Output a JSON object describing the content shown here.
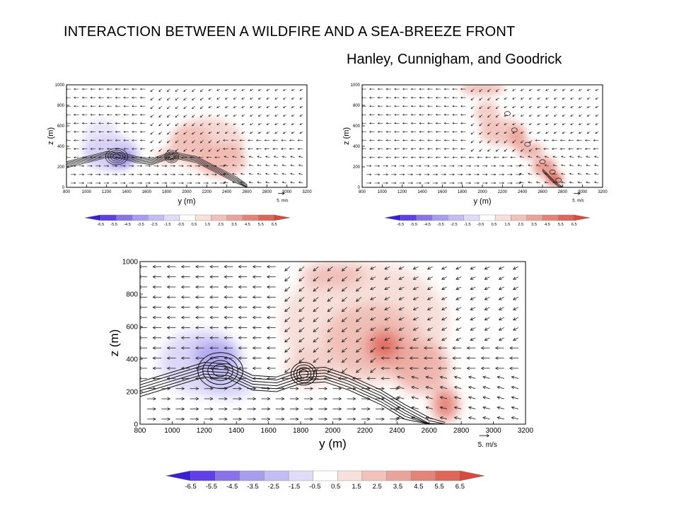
{
  "header": {
    "title": "INTERACTION BETWEEN A WILDFIRE AND A SEA-BREEZE FRONT",
    "authors": "Hanley, Cunnigham, and Goodrick"
  },
  "figure_common": {
    "xlabel": "y (m)",
    "ylabel": "z (m)",
    "x_ticks": [
      "800",
      "1000",
      "1200",
      "1400",
      "1600",
      "1800",
      "2000",
      "2200",
      "2400",
      "2600",
      "2800",
      "3000",
      "3200"
    ],
    "y_ticks": [
      "0",
      "200",
      "400",
      "600",
      "800",
      "1000"
    ],
    "xlim": [
      800,
      3200
    ],
    "ylim": [
      0,
      1000
    ],
    "vector_key": "5. m/s",
    "colorbar_labels": [
      "-6.5",
      "-5.5",
      "-4.5",
      "-3.5",
      "-2.5",
      "-1.5",
      "-0.5",
      "0.5",
      "1.5",
      "2.5",
      "3.5",
      "4.5",
      "5.5",
      "6.5"
    ],
    "colorbar_colors": [
      "#3a1fd6",
      "#6040e6",
      "#8a72ea",
      "#a79cef",
      "#c4bdf3",
      "#e0dcf8",
      "#ffffff",
      "#f8e0dc",
      "#f1c2bc",
      "#eaa39a",
      "#e48479",
      "#de6659",
      "#d94a3c"
    ]
  },
  "chart_data": [
    {
      "type": "heatmap",
      "panel": "top-left",
      "xlabel": "y (m)",
      "ylabel": "z (m)",
      "xlim": [
        800,
        3200
      ],
      "ylim": [
        0,
        1000
      ],
      "features": "cool anomaly near y 1000-1500 m below 500 m; warm plume 1900-2600 m up to 700 m; vortices at y 1300 and 1850 m"
    },
    {
      "type": "heatmap",
      "panel": "top-right",
      "xlabel": "y (m)",
      "ylabel": "z (m)",
      "xlim": [
        800,
        3200
      ],
      "ylim": [
        0,
        1000
      ],
      "features": "narrow warm plume tilted from y 2750 m near surface up to y 2000 m at 1000 m"
    },
    {
      "type": "heatmap",
      "panel": "bottom",
      "xlabel": "y (m)",
      "ylabel": "z (m)",
      "xlim": [
        800,
        3200
      ],
      "ylim": [
        0,
        1000
      ],
      "features": "cool anomaly y 1000-1400 m below 550 m; warm region y 1700-2700 m peaking near y 2320 m z 480 m; fire plume at y 2700 m"
    }
  ]
}
